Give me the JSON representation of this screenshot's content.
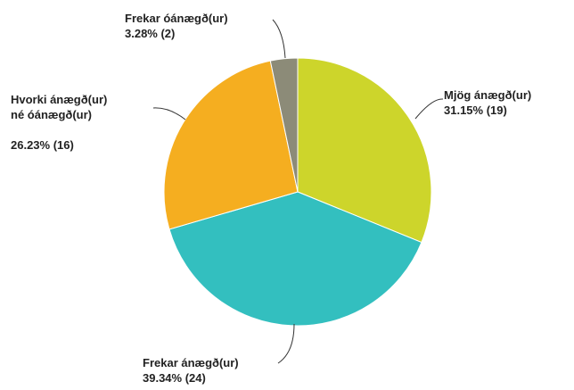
{
  "chart_data": {
    "type": "pie",
    "categories": [
      "Mjög ánægð(ur)",
      "Frekar ánægð(ur)",
      "Hvorki ánægð(ur) né óánægð(ur)",
      "Frekar óánægð(ur)"
    ],
    "values": [
      31.15,
      39.34,
      26.23,
      3.28
    ],
    "value_labels": [
      "31.15% (19)",
      "39.34% (24)",
      "26.23% (16)",
      "3.28% (2)"
    ],
    "colors": [
      "#cdd52b",
      "#33bfbf",
      "#f5ae20",
      "#8c8b78"
    ]
  }
}
